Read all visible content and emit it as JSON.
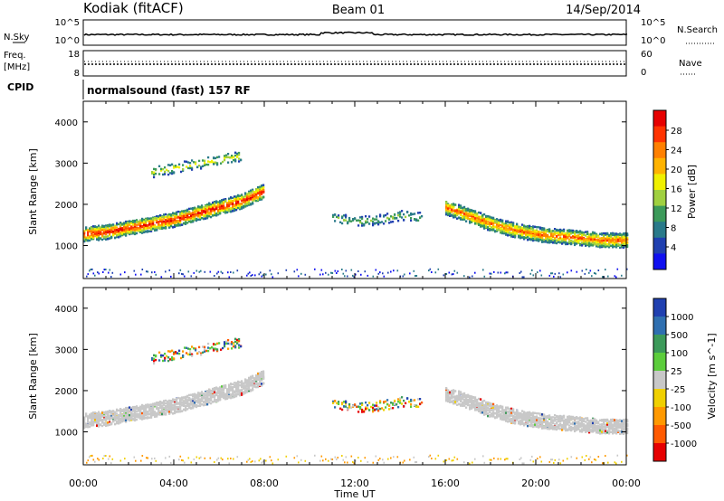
{
  "header": {
    "station": "Kodiak (fitACF)",
    "beam": "Beam 01",
    "date": "14/Sep/2014"
  },
  "panels": {
    "nsky": {
      "left_label": "N.Sky",
      "right_label": "N.Search",
      "left_ticks": [
        "10^5",
        "10^0"
      ],
      "right_ticks": [
        "10^5",
        "10^0"
      ]
    },
    "freq": {
      "left_label_top": "Freq.",
      "left_label_unit": "[MHz]",
      "left_ticks": [
        "18",
        "8"
      ],
      "right_label": "Nave",
      "right_ticks": [
        "60",
        "0"
      ]
    },
    "cpid": {
      "label": "CPID",
      "text": "normalsound (fast) 157 RF"
    }
  },
  "colorbars": {
    "power": {
      "label": "Power [dB]",
      "ticks": [
        "28",
        "24",
        "20",
        "16",
        "12",
        "8",
        "4"
      ],
      "colors": [
        "#e60000",
        "#ff3300",
        "#ff8000",
        "#ffb300",
        "#f0f000",
        "#a0d040",
        "#3c9a5a",
        "#2a7a8a",
        "#2040b0",
        "#1010f0"
      ]
    },
    "velocity": {
      "label": "Velocity [m s^-1]",
      "ticks": [
        "1000",
        "500",
        "100",
        "25",
        "-25",
        "-100",
        "-500",
        "-1000"
      ],
      "colors": [
        "#2040b0",
        "#2f6fb0",
        "#3c9a5a",
        "#5ccd3c",
        "#c8c8c8",
        "#f0d000",
        "#ff9900",
        "#ff5a00",
        "#e60000"
      ]
    }
  },
  "chart_data": [
    {
      "type": "heatmap",
      "title": "Power",
      "xlabel": "Time UT",
      "ylabel": "Slant Range [km]",
      "x_ticks": [
        "00:00",
        "04:00",
        "08:00",
        "12:00",
        "16:00",
        "20:00",
        "00:00"
      ],
      "y_ticks": [
        "1000",
        "2000",
        "3000",
        "4000"
      ],
      "xlim": [
        0,
        24
      ],
      "ylim": [
        200,
        4500
      ],
      "features": [
        {
          "name": "main band",
          "x": [
            0,
            1,
            2,
            3,
            4,
            5,
            6,
            7,
            8
          ],
          "y": [
            1300,
            1350,
            1450,
            1550,
            1650,
            1800,
            1950,
            2100,
            2350
          ],
          "peak_db": 28
        },
        {
          "name": "main band (late)",
          "x": [
            16,
            17,
            18,
            19,
            20,
            21,
            22,
            23,
            24
          ],
          "y": [
            1950,
            1750,
            1550,
            1400,
            1300,
            1250,
            1200,
            1150,
            1150
          ],
          "peak_db": 24
        },
        {
          "name": "upper echoes",
          "x": [
            3,
            4,
            5,
            6,
            7
          ],
          "y": [
            2800,
            2900,
            3000,
            3100,
            3200
          ],
          "peak_db": 16
        },
        {
          "name": "midday patches",
          "x": [
            11,
            12,
            13,
            14,
            15
          ],
          "y": [
            1700,
            1600,
            1650,
            1750,
            1700
          ],
          "peak_db": 12
        }
      ]
    },
    {
      "type": "heatmap",
      "title": "Velocity",
      "xlabel": "Time UT",
      "ylabel": "Slant Range [km]",
      "x_ticks": [
        "00:00",
        "04:00",
        "08:00",
        "12:00",
        "16:00",
        "20:00",
        "00:00"
      ],
      "y_ticks": [
        "1000",
        "2000",
        "3000",
        "4000"
      ],
      "xlim": [
        0,
        24
      ],
      "ylim": [
        200,
        4500
      ]
    }
  ]
}
